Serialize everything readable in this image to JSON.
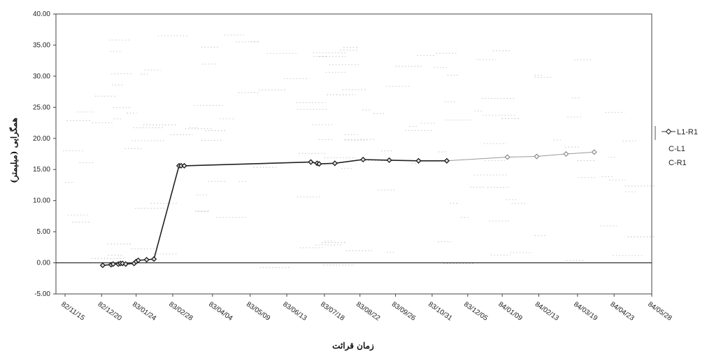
{
  "chart_data": {
    "type": "line",
    "title": "",
    "xlabel": "زمان قرائت",
    "ylabel": "همگرایی (میلیمتر)",
    "ylim": [
      -5,
      40
    ],
    "y_ticks": [
      "-5.00",
      "0.00",
      "5.00",
      "10.00",
      "15.00",
      "20.00",
      "25.00",
      "30.00",
      "35.00",
      "40.00"
    ],
    "x_ticks": [
      "82/11/15",
      "82/12/20",
      "83/01/24",
      "83/02/28",
      "83/04/04",
      "83/05/09",
      "83/06/13",
      "83/07/18",
      "83/08/22",
      "83/09/26",
      "83/10/31",
      "83/12/05",
      "84/01/09",
      "84/02/13",
      "84/03/19",
      "84/04/23",
      "84/05/28"
    ],
    "grid": false,
    "legend_position": "right",
    "series": [
      {
        "name": "L1-R1",
        "points": [
          [
            "82/12/21",
            -0.4
          ],
          [
            "82/12/29",
            -0.3
          ],
          [
            "82/12/31",
            -0.2
          ],
          [
            "83/01/07",
            -0.2
          ],
          [
            "83/01/09",
            -0.1
          ],
          [
            "83/01/11",
            -0.1
          ],
          [
            "83/01/14",
            -0.2
          ],
          [
            "83/01/22",
            -0.1
          ],
          [
            "83/01/24",
            0.2
          ],
          [
            "83/01/26",
            0.4
          ],
          [
            "83/02/03",
            0.5
          ],
          [
            "83/02/10",
            0.6
          ],
          [
            "83/03/03",
            15.6
          ],
          [
            "83/03/05",
            15.6
          ],
          [
            "83/03/08",
            15.6
          ],
          [
            "83/07/05",
            16.2
          ],
          [
            "83/07/11",
            16.0
          ],
          [
            "83/07/13",
            15.9
          ],
          [
            "83/07/28",
            16.0
          ],
          [
            "83/08/25",
            16.6
          ],
          [
            "83/09/20",
            16.5
          ],
          [
            "83/10/18",
            16.4
          ],
          [
            "83/11/15",
            16.4
          ],
          [
            "84/01/14",
            17.0
          ],
          [
            "84/02/11",
            17.1
          ],
          [
            "84/03/08",
            17.5
          ],
          [
            "84/04/04",
            17.8
          ]
        ]
      },
      {
        "name": "C-L1",
        "points": []
      },
      {
        "name": "C-R1",
        "points": []
      }
    ]
  }
}
